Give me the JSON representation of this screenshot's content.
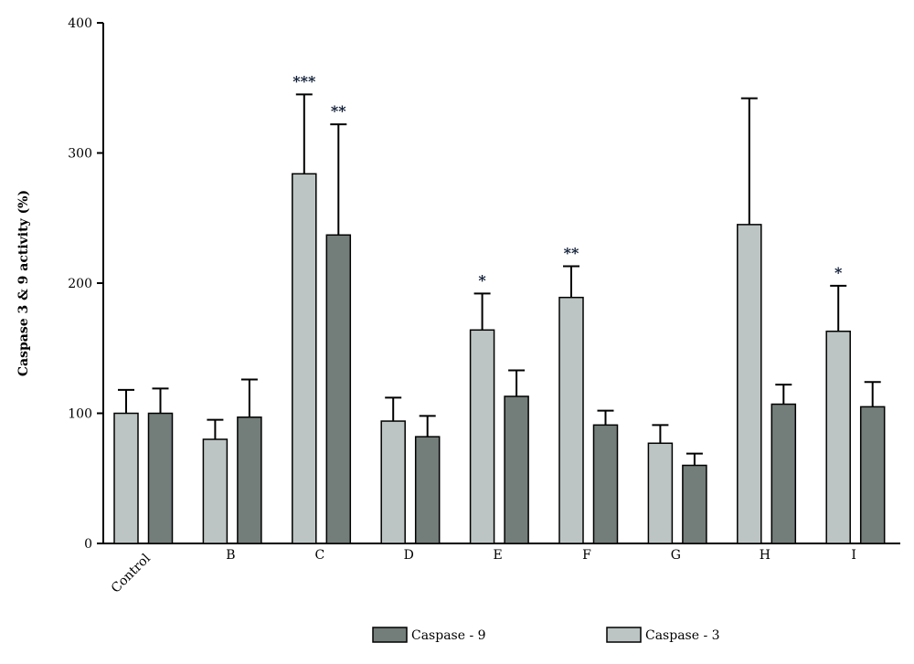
{
  "chart_data": {
    "type": "bar",
    "title": "",
    "xlabel": "",
    "ylabel": "Caspase 3 & 9 activity (%)",
    "ylim": [
      0,
      400
    ],
    "yticks": [
      0,
      100,
      200,
      300,
      400
    ],
    "categories": [
      "Control",
      "B",
      "C",
      "D",
      "E",
      "F",
      "G",
      "H",
      "I"
    ],
    "series": [
      {
        "name": "Caspase - 3",
        "color": "#bcc5c3",
        "values": [
          100,
          80,
          284,
          94,
          164,
          189,
          77,
          245,
          163
        ],
        "error_upper": [
          118,
          95,
          345,
          112,
          192,
          213,
          91,
          342,
          198
        ],
        "significance": [
          "",
          "",
          "***",
          "",
          "*",
          "**",
          "",
          "",
          "*"
        ]
      },
      {
        "name": "Caspase - 9",
        "color": "#737d7a",
        "values": [
          100,
          97,
          237,
          82,
          113,
          91,
          60,
          107,
          105
        ],
        "error_upper": [
          119,
          126,
          322,
          98,
          133,
          102,
          69,
          122,
          124
        ],
        "significance": [
          "",
          "",
          "**",
          "",
          "",
          "",
          "",
          "",
          ""
        ]
      }
    ],
    "legend": {
      "placement": "bottom",
      "order": [
        "Caspase - 9",
        "Caspase - 3"
      ]
    },
    "grid": false
  }
}
